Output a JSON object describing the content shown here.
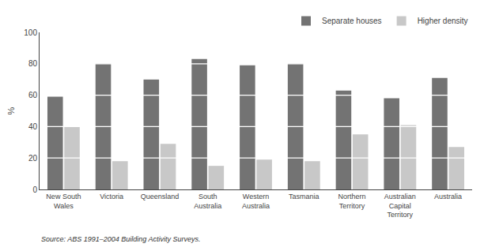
{
  "chart_data": {
    "type": "bar",
    "categories": [
      "New South\nWales",
      "Victoria",
      "Queensland",
      "South\nAustralia",
      "Western\nAustralia",
      "Tasmania",
      "Northern\nTerritory",
      "Australian\nCapital\nTerritory",
      "Australia"
    ],
    "series": [
      {
        "name": "Separate houses",
        "color": "#737373",
        "values": [
          59,
          80,
          70,
          83,
          79,
          80,
          63,
          58,
          71
        ]
      },
      {
        "name": "Higher density",
        "color": "#c8c8c8",
        "values": [
          40,
          18,
          29,
          15,
          19,
          18,
          35,
          41,
          27
        ]
      }
    ],
    "ylabel": "%",
    "annotations": [
      "Source: ABS 1991–2004 Building Activity Surveys."
    ],
    "ylim": [
      0,
      100
    ],
    "yticks": [
      0,
      20,
      40,
      60,
      80,
      100
    ],
    "grid": false,
    "legend": "upper right"
  }
}
